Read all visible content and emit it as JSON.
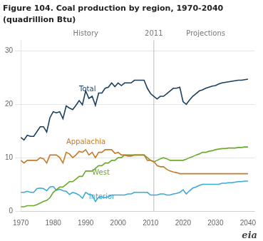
{
  "chart_data": {
    "type": "line",
    "title": "Figure 104. Coal production by region, 1970-2040",
    "subtitle": "(quadrillion Btu)",
    "x": [
      1970,
      1971,
      1972,
      1973,
      1974,
      1975,
      1976,
      1977,
      1978,
      1979,
      1980,
      1981,
      1982,
      1983,
      1984,
      1985,
      1986,
      1987,
      1988,
      1989,
      1990,
      1991,
      1992,
      1993,
      1994,
      1995,
      1996,
      1997,
      1998,
      1999,
      2000,
      2001,
      2002,
      2003,
      2004,
      2005,
      2006,
      2007,
      2008,
      2009,
      2010,
      2011,
      2012,
      2013,
      2014,
      2015,
      2016,
      2017,
      2018,
      2019,
      2020,
      2021,
      2022,
      2023,
      2024,
      2025,
      2026,
      2027,
      2028,
      2029,
      2030,
      2031,
      2032,
      2033,
      2034,
      2035,
      2036,
      2037,
      2038,
      2039,
      2040
    ],
    "series": [
      {
        "name": "Total",
        "color": "#1b3f5e",
        "values": [
          13.8,
          13.3,
          14.2,
          14.0,
          14.0,
          14.9,
          15.8,
          15.8,
          14.8,
          17.5,
          18.6,
          18.4,
          18.6,
          17.3,
          19.7,
          19.3,
          19.0,
          19.8,
          20.7,
          19.9,
          22.5,
          21.1,
          21.5,
          19.8,
          22.1,
          22.1,
          23.0,
          23.2,
          24.0,
          23.3,
          24.0,
          23.5,
          24.0,
          24.0,
          24.0,
          24.5,
          24.5,
          24.5,
          24.5,
          23.0,
          22.0,
          21.5,
          21.0,
          21.5,
          21.5,
          22.0,
          22.5,
          23.0,
          23.0,
          23.2,
          20.5,
          20.0,
          20.8,
          21.5,
          22.0,
          22.5,
          22.7,
          23.0,
          23.2,
          23.4,
          23.5,
          23.8,
          24.0,
          24.1,
          24.2,
          24.3,
          24.4,
          24.5,
          24.5,
          24.6,
          24.7
        ]
      },
      {
        "name": "Appalachia",
        "color": "#c47a2a",
        "values": [
          9.5,
          9.0,
          9.5,
          9.5,
          9.5,
          9.5,
          10.0,
          9.8,
          9.0,
          10.5,
          10.5,
          10.5,
          10.0,
          9.0,
          11.0,
          10.7,
          10.0,
          10.5,
          11.2,
          11.0,
          11.5,
          10.5,
          11.0,
          10.0,
          11.0,
          11.0,
          11.5,
          11.5,
          11.5,
          10.8,
          11.0,
          10.5,
          10.5,
          10.3,
          10.3,
          10.5,
          10.5,
          10.5,
          10.5,
          9.5,
          9.5,
          9.3,
          8.5,
          8.3,
          8.3,
          7.8,
          7.5,
          7.3,
          7.2,
          7.0,
          7.0,
          7.0,
          7.0,
          7.0,
          7.0,
          7.0,
          7.0,
          7.0,
          7.0,
          7.0,
          7.0,
          7.0,
          7.0,
          7.0,
          7.0,
          7.0,
          7.0,
          7.0,
          7.0,
          7.0,
          7.0
        ]
      },
      {
        "name": "West",
        "color": "#6aaa2a",
        "values": [
          0.8,
          0.8,
          1.0,
          1.0,
          1.0,
          1.2,
          1.5,
          1.8,
          2.0,
          2.5,
          3.5,
          4.0,
          4.5,
          4.5,
          5.0,
          5.5,
          5.5,
          6.0,
          6.5,
          6.5,
          7.5,
          7.5,
          7.5,
          8.0,
          8.5,
          8.5,
          9.0,
          9.0,
          9.5,
          9.5,
          10.0,
          10.0,
          10.5,
          10.5,
          10.5,
          10.5,
          10.5,
          10.5,
          10.5,
          10.0,
          9.5,
          9.2,
          9.5,
          9.8,
          10.0,
          9.8,
          9.5,
          9.5,
          9.5,
          9.5,
          9.5,
          9.7,
          10.0,
          10.2,
          10.5,
          10.7,
          11.0,
          11.0,
          11.2,
          11.3,
          11.5,
          11.6,
          11.7,
          11.7,
          11.8,
          11.8,
          11.8,
          11.9,
          11.9,
          12.0,
          12.0
        ]
      },
      {
        "name": "Interior",
        "color": "#3aaad4",
        "values": [
          3.5,
          3.5,
          3.7,
          3.5,
          3.5,
          4.2,
          4.3,
          4.2,
          3.8,
          4.5,
          4.6,
          3.9,
          4.1,
          3.8,
          3.7,
          3.1,
          3.5,
          3.3,
          3.0,
          2.4,
          3.5,
          3.1,
          3.0,
          1.8,
          2.6,
          2.6,
          2.5,
          2.7,
          3.0,
          3.0,
          3.0,
          3.0,
          3.0,
          3.2,
          3.2,
          3.5,
          3.5,
          3.5,
          3.5,
          3.5,
          3.0,
          3.0,
          3.0,
          3.2,
          3.2,
          3.0,
          3.0,
          3.2,
          3.3,
          3.5,
          4.0,
          3.2,
          3.8,
          4.3,
          4.5,
          4.8,
          5.0,
          5.0,
          5.0,
          5.0,
          5.0,
          5.0,
          5.2,
          5.2,
          5.3,
          5.3,
          5.4,
          5.5,
          5.5,
          5.6,
          5.6
        ]
      }
    ],
    "xlim": [
      1970,
      2042
    ],
    "xticks": [
      1970,
      1980,
      1990,
      2000,
      2010,
      2020,
      2030,
      2040
    ],
    "ylim": [
      0,
      32
    ],
    "yticks": [
      0,
      10,
      20,
      30
    ],
    "grid": "y",
    "annotations": [
      {
        "text": "Total",
        "x": 1988,
        "y": 22.5,
        "color": "#1b3f5e"
      },
      {
        "text": "Appalachia",
        "x": 1984,
        "y": 12.5,
        "color": "#c47a2a"
      },
      {
        "text": "West",
        "x": 1992,
        "y": 6.8,
        "color": "#6aaa2a"
      },
      {
        "text": "Interior",
        "x": 1991,
        "y": 2.3,
        "color": "#3aaad4"
      },
      {
        "text": "History",
        "x": 1990
      },
      {
        "text": "2011",
        "x": 2011
      },
      {
        "text": "Projections",
        "x": 2027
      },
      {
        "text": "eia"
      }
    ],
    "vlines": [
      2011
    ]
  }
}
